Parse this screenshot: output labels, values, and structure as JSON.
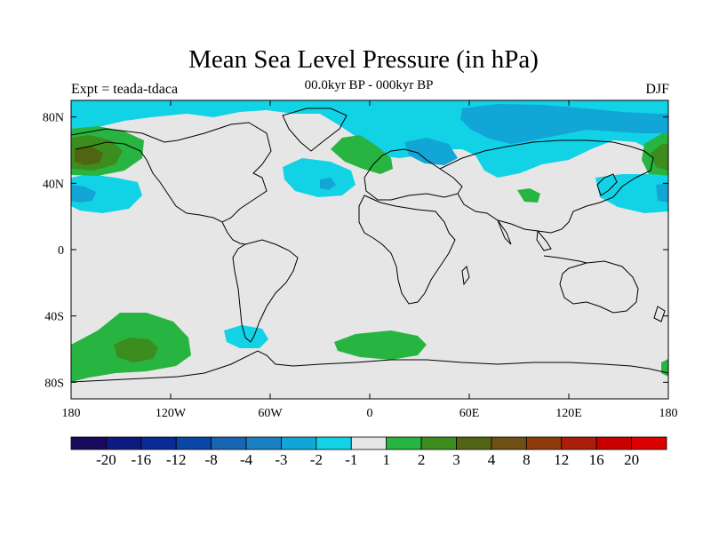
{
  "title": "Mean Sea Level Pressure (in hPa)",
  "left_label": "Expt = teada-tdaca",
  "center_label": "00.0kyr BP - 000kyr BP",
  "right_label": "DJF",
  "map": {
    "projection": "cylindrical-equidistant",
    "lon_range": [
      -180,
      180
    ],
    "lat_range": [
      -90,
      90
    ],
    "lat_ticks": [
      {
        "lat": 80,
        "label": "80N"
      },
      {
        "lat": 40,
        "label": "40N"
      },
      {
        "lat": 0,
        "label": "0"
      },
      {
        "lat": -40,
        "label": "40S"
      },
      {
        "lat": -80,
        "label": "80S"
      }
    ],
    "lon_ticks": [
      {
        "lon": -180,
        "label": "180"
      },
      {
        "lon": -120,
        "label": "120W"
      },
      {
        "lon": -60,
        "label": "60W"
      },
      {
        "lon": 0,
        "label": "0"
      },
      {
        "lon": 60,
        "label": "60E"
      },
      {
        "lon": 120,
        "label": "120E"
      },
      {
        "lon": 180,
        "label": "180"
      }
    ],
    "background_color": "#e6e6e6",
    "coastline_color": "#000000"
  },
  "colorbar": {
    "labels": [
      "-20",
      "-16",
      "-12",
      "-8",
      "-4",
      "-3",
      "-2",
      "-1",
      "1",
      "2",
      "3",
      "4",
      "8",
      "12",
      "16",
      "20"
    ],
    "colors": [
      "#1a0a5e",
      "#0d1a80",
      "#0a2a96",
      "#0a46a6",
      "#1a64b4",
      "#1a82c4",
      "#12a6d6",
      "#12d2e6",
      "#e6e6e6",
      "#28b440",
      "#3c8c1e",
      "#506414",
      "#6e5014",
      "#8c3c0a",
      "#aa1e0a",
      "#c80000",
      "#dc0000"
    ]
  }
}
